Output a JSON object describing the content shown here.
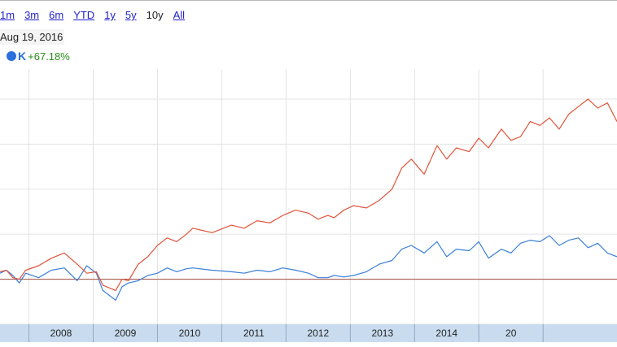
{
  "range_links": [
    {
      "label": "1m",
      "active": false
    },
    {
      "label": "3m",
      "active": false
    },
    {
      "label": "6m",
      "active": false
    },
    {
      "label": "YTD",
      "active": false
    },
    {
      "label": "1y",
      "active": false
    },
    {
      "label": "5y",
      "active": false
    },
    {
      "label": "10y",
      "active": true
    },
    {
      "label": "All",
      "active": false
    }
  ],
  "date_label": "Aug 19, 2016",
  "legend": {
    "symbol": "K",
    "change": "+67.18%",
    "color": "#2a6fdd"
  },
  "colors": {
    "series_blue": "#3b7fd9",
    "series_red": "#e0543a",
    "baseline": "#9e4b3f",
    "axis_band": "#c9dcef",
    "grid": "#e3e3e3"
  },
  "chart_data": {
    "type": "line",
    "x_tick_labels": [
      "2008",
      "2009",
      "2010",
      "2011",
      "2012",
      "2013",
      "2014",
      "20"
    ],
    "xlim": [
      2007.0,
      2016.6
    ],
    "ylim": [
      -60,
      280
    ],
    "y_unit": "percent change",
    "baseline": 0,
    "grid": true,
    "series": [
      {
        "color": "#3b7fd9",
        "x": [
          2007.0,
          2007.1,
          2007.2,
          2007.3,
          2007.4,
          2007.6,
          2007.8,
          2008.0,
          2008.2,
          2008.35,
          2008.5,
          2008.6,
          2008.8,
          2008.9,
          2009.0,
          2009.15,
          2009.3,
          2009.45,
          2009.6,
          2009.75,
          2009.9,
          2010.0,
          2010.3,
          2010.6,
          2010.8,
          2011.0,
          2011.2,
          2011.4,
          2011.6,
          2011.8,
          2011.95,
          2012.1,
          2012.2,
          2012.35,
          2012.5,
          2012.7,
          2012.9,
          2013.1,
          2013.25,
          2013.4,
          2013.6,
          2013.8,
          2013.95,
          2014.1,
          2014.3,
          2014.45,
          2014.6,
          2014.8,
          2014.95,
          2015.1,
          2015.25,
          2015.4,
          2015.55,
          2015.7,
          2015.85,
          2016.0,
          2016.15,
          2016.3,
          2016.45,
          2016.6
        ],
        "y": [
          8,
          12,
          5,
          -5,
          8,
          2,
          12,
          15,
          -2,
          18,
          8,
          -15,
          -28,
          -10,
          -5,
          -2,
          5,
          8,
          15,
          10,
          14,
          15,
          12,
          10,
          8,
          12,
          10,
          15,
          12,
          8,
          2,
          2,
          5,
          3,
          5,
          10,
          20,
          25,
          40,
          45,
          35,
          50,
          30,
          40,
          38,
          50,
          28,
          40,
          35,
          48,
          52,
          50,
          58,
          45,
          52,
          55,
          42,
          48,
          35,
          30
        ]
      },
      {
        "color": "#e0543a",
        "x": [
          2007.0,
          2007.1,
          2007.2,
          2007.3,
          2007.4,
          2007.6,
          2007.8,
          2008.0,
          2008.2,
          2008.35,
          2008.5,
          2008.6,
          2008.8,
          2008.9,
          2009.0,
          2009.15,
          2009.3,
          2009.45,
          2009.6,
          2009.75,
          2009.9,
          2010.0,
          2010.3,
          2010.6,
          2010.8,
          2011.0,
          2011.2,
          2011.4,
          2011.6,
          2011.8,
          2011.95,
          2012.1,
          2012.2,
          2012.35,
          2012.5,
          2012.7,
          2012.9,
          2013.1,
          2013.25,
          2013.4,
          2013.6,
          2013.8,
          2013.95,
          2014.1,
          2014.3,
          2014.45,
          2014.6,
          2014.8,
          2014.95,
          2015.1,
          2015.25,
          2015.4,
          2015.55,
          2015.7,
          2015.85,
          2016.0,
          2016.15,
          2016.3,
          2016.45,
          2016.6
        ],
        "y": [
          10,
          12,
          2,
          0,
          12,
          18,
          28,
          35,
          20,
          8,
          10,
          -8,
          -15,
          0,
          -2,
          20,
          30,
          45,
          55,
          50,
          60,
          68,
          62,
          72,
          68,
          78,
          75,
          85,
          92,
          88,
          80,
          85,
          82,
          92,
          98,
          95,
          105,
          120,
          148,
          160,
          140,
          178,
          160,
          175,
          170,
          188,
          175,
          200,
          185,
          190,
          210,
          205,
          215,
          200,
          220,
          230,
          240,
          228,
          235,
          210
        ]
      }
    ]
  }
}
